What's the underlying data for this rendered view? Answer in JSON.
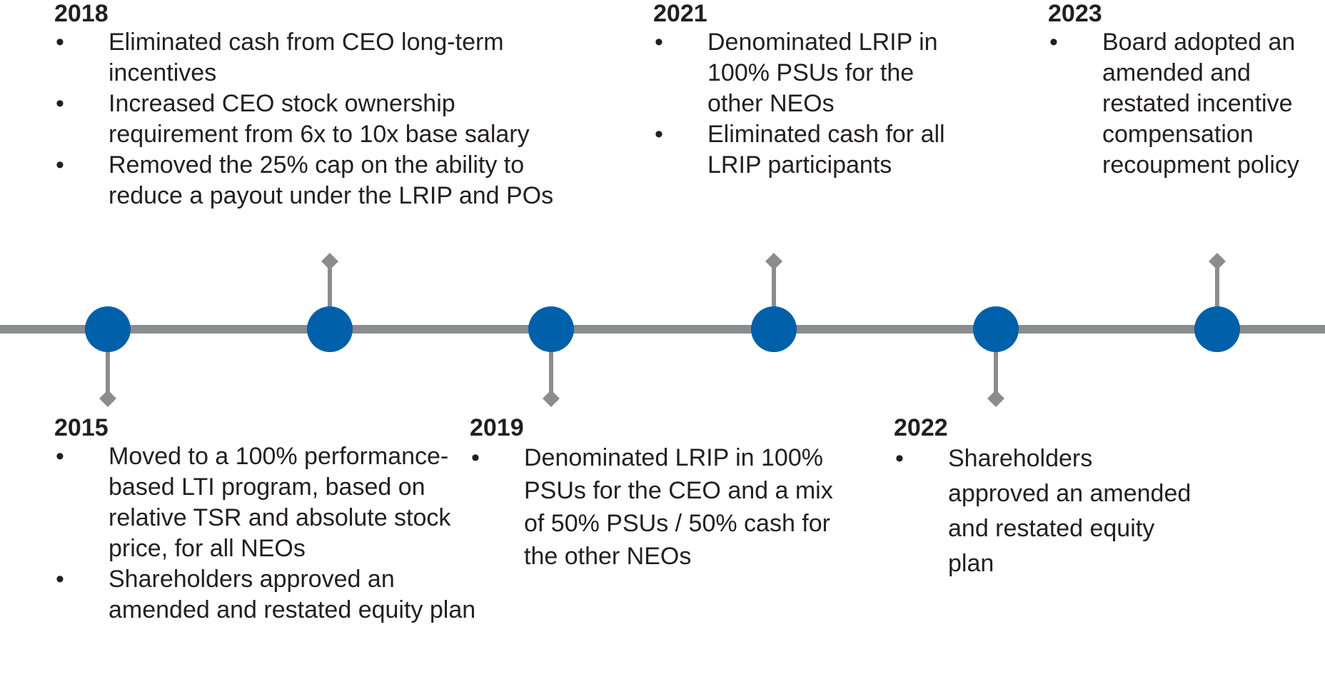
{
  "bullet_glyph": "•",
  "colors": {
    "line": "#8a8c8e",
    "node": "#0060a9",
    "text": "#231f20"
  },
  "events": [
    {
      "year": "2015",
      "items": [
        "Moved to a 100% performance-based LTI program, based on relative TSR and absolute stock price, for all NEOs",
        "Shareholders approved an amended and restated equity plan"
      ]
    },
    {
      "year": "2018",
      "items": [
        "Eliminated cash from CEO long-term incentives",
        "Increased CEO stock ownership requirement from 6x to 10x base salary",
        "Removed the 25% cap on the ability to reduce a payout under the LRIP and POs"
      ]
    },
    {
      "year": "2019",
      "items": [
        "Denominated LRIP in 100% PSUs for the CEO and a mix of 50% PSUs / 50% cash for the other NEOs"
      ]
    },
    {
      "year": "2021",
      "items": [
        "Denominated LRIP in 100% PSUs for the other NEOs",
        "Eliminated cash for all LRIP participants"
      ]
    },
    {
      "year": "2022",
      "items": [
        "Shareholders approved an amended and restated equity plan"
      ]
    },
    {
      "year": "2023",
      "items": [
        "Board adopted an amended and restated incentive compensation recoupment policy"
      ]
    }
  ]
}
